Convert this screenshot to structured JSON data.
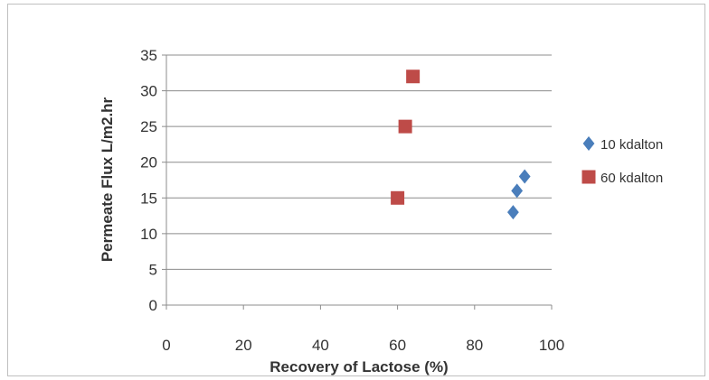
{
  "chart_data": {
    "type": "scatter",
    "title": "",
    "xlabel": "Recovery of Lactose (%)",
    "ylabel": "Permeate Flux L/m2.hr",
    "xlim": [
      0,
      100
    ],
    "ylim": [
      0,
      35
    ],
    "x_ticks": [
      0,
      20,
      40,
      60,
      80,
      100
    ],
    "y_ticks": [
      0,
      5,
      10,
      15,
      20,
      25,
      30,
      35
    ],
    "grid": "horizontal",
    "legend_position": "right",
    "series": [
      {
        "name": "10 kdalton",
        "marker": "diamond",
        "color": "#4a7ebb",
        "points": [
          {
            "x": 90,
            "y": 13
          },
          {
            "x": 91,
            "y": 16
          },
          {
            "x": 93,
            "y": 18
          }
        ]
      },
      {
        "name": "60 kdalton",
        "marker": "square",
        "color": "#be4b48",
        "points": [
          {
            "x": 60,
            "y": 15
          },
          {
            "x": 62,
            "y": 25
          },
          {
            "x": 64,
            "y": 32
          }
        ]
      }
    ]
  }
}
